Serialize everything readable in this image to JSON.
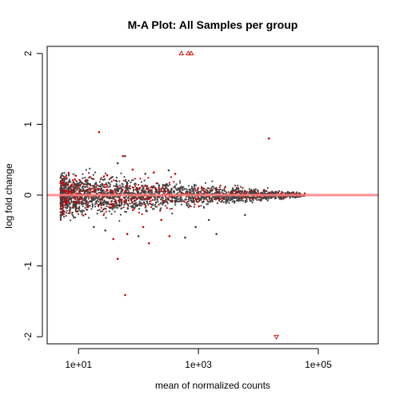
{
  "chart_data": {
    "type": "scatter",
    "title": "M-A Plot: All Samples per group",
    "xlabel": "mean of normalized counts",
    "ylabel": "log fold change",
    "x_scale": "log10",
    "xlim": [
      3,
      1000000
    ],
    "ylim": [
      -2.1,
      2.1
    ],
    "x_ticks": [
      {
        "value": 10,
        "label": "1e+01"
      },
      {
        "value": 1000,
        "label": "1e+03"
      },
      {
        "value": 100000,
        "label": "1e+05"
      }
    ],
    "y_ticks": [
      {
        "value": -2,
        "label": "-2"
      },
      {
        "value": -1,
        "label": "-1"
      },
      {
        "value": 0,
        "label": "0"
      },
      {
        "value": 1,
        "label": "1"
      },
      {
        "value": 2,
        "label": "2"
      }
    ],
    "reference_line": {
      "y": 0,
      "color": "#ff7f7f"
    },
    "colors": {
      "nonsignificant": "#404040",
      "significant": "#cc0000"
    },
    "bulk_cloud": {
      "description_points": "dense band of points around y=0, x from ~5 to ~50000",
      "x_range": [
        5,
        60000
      ],
      "spread_at_low_x": 0.35,
      "spread_at_high_x": 0.03
    },
    "series": [
      {
        "name": "out_of_range_up",
        "marker": "triangle-up",
        "color": "#cc0000",
        "points": [
          [
            520,
            2.0
          ],
          [
            680,
            2.0
          ],
          [
            760,
            2.0
          ]
        ]
      },
      {
        "name": "out_of_range_down",
        "marker": "triangle-down",
        "color": "#cc0000",
        "points": [
          [
            20000,
            -2.0
          ]
        ]
      },
      {
        "name": "outliers_significant",
        "marker": "circle",
        "color": "#cc0000",
        "points": [
          [
            22,
            0.89
          ],
          [
            15000,
            0.8
          ],
          [
            60,
            -1.41
          ],
          [
            45,
            -0.9
          ],
          [
            38,
            -0.62
          ],
          [
            65,
            -0.55
          ],
          [
            150,
            -0.68
          ],
          [
            240,
            -0.35
          ],
          [
            330,
            -0.58
          ],
          [
            120,
            -0.45
          ],
          [
            30,
            0.28
          ],
          [
            55,
            0.55
          ],
          [
            80,
            0.36
          ],
          [
            180,
            0.32
          ],
          [
            410,
            0.3
          ]
        ]
      },
      {
        "name": "outliers_nonsignificant",
        "marker": "circle",
        "color": "#404040",
        "points": [
          [
            60,
            0.55
          ],
          [
            320,
            0.35
          ],
          [
            130,
            0.3
          ],
          [
            45,
            0.45
          ],
          [
            900,
            -0.45
          ],
          [
            2000,
            -0.55
          ],
          [
            600,
            -0.6
          ],
          [
            28,
            -0.5
          ],
          [
            18,
            -0.45
          ],
          [
            100,
            -0.58
          ],
          [
            1500,
            -0.35
          ],
          [
            6000,
            -0.28
          ]
        ]
      }
    ]
  }
}
